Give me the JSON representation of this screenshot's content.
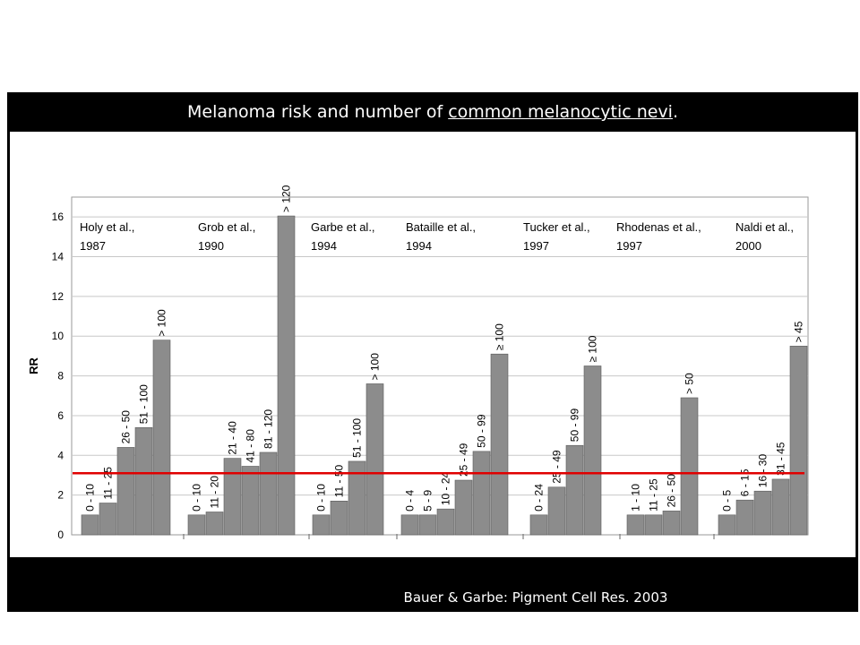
{
  "slide": {
    "title_prefix": "Melanoma risk and number of ",
    "title_underlined": "common melanocytic nevi",
    "title_suffix": ".",
    "citation": "Bauer & Garbe: Pigment Cell Res. 2003"
  },
  "colors": {
    "bar": "#8c8c8c",
    "reference_line": "#e00000",
    "background": "#000000"
  },
  "chart_data": {
    "type": "bar",
    "title": "",
    "ylabel": "RR",
    "xlabel": "",
    "ylim": [
      0,
      17
    ],
    "yticks": [
      "0",
      "2",
      "4",
      "6",
      "8",
      "10",
      "12",
      "14",
      "16"
    ],
    "grid": true,
    "reference_line": 3.1,
    "studies": [
      {
        "line1": "Holy et al.,",
        "line2": "1987",
        "categories": [
          "0 - 10",
          "11 - 25",
          "26 - 50",
          "51 - 100",
          "> 100"
        ],
        "values": [
          1.0,
          1.6,
          4.4,
          5.4,
          9.8
        ]
      },
      {
        "line1": "Grob et al.,",
        "line2": "1990",
        "categories": [
          "0 - 10",
          "11 - 20",
          "21 - 40",
          "41 - 80",
          "81 - 120",
          "> 120"
        ],
        "values": [
          1.0,
          1.15,
          3.85,
          3.45,
          4.15,
          16.05
        ]
      },
      {
        "line1": "Garbe et al.,",
        "line2": "1994",
        "categories": [
          "0 - 10",
          "11 - 50",
          "51 - 100",
          "> 100"
        ],
        "values": [
          1.0,
          1.7,
          3.7,
          7.6
        ]
      },
      {
        "line1": "Bataille et al.,",
        "line2": "1994",
        "categories": [
          "0 - 4",
          "5 - 9",
          "10 - 24",
          "25 - 49",
          "50 - 99",
          "≥ 100"
        ],
        "values": [
          1.0,
          1.0,
          1.3,
          2.75,
          4.2,
          9.1
        ]
      },
      {
        "line1": "Tucker et al.,",
        "line2": "1997",
        "categories": [
          "0 - 24",
          "25 - 49",
          "50 - 99",
          "≥ 100"
        ],
        "values": [
          1.0,
          2.4,
          4.5,
          8.5
        ]
      },
      {
        "line1": "Rhodenas et al.,",
        "line2": "1997",
        "categories": [
          "1 - 10",
          "11 - 25",
          "26 - 50",
          "> 50"
        ],
        "values": [
          1.0,
          1.0,
          1.2,
          6.9
        ]
      },
      {
        "line1": "Naldi et al.,",
        "line2": "2000",
        "categories": [
          "0 - 5",
          "6 - 15",
          "16 - 30",
          "31 - 45",
          "> 45"
        ],
        "values": [
          1.0,
          1.75,
          2.2,
          2.8,
          9.5
        ]
      }
    ]
  }
}
